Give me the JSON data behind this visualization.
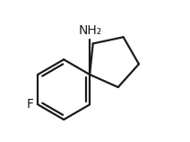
{
  "background_color": "#ffffff",
  "line_color": "#1a1a1a",
  "line_width": 1.6,
  "font_size_nh2": 10,
  "font_size_f": 10,
  "nh2_label": "NH₂",
  "f_label": "F",
  "figsize": [
    2.12,
    1.58
  ],
  "dpi": 100
}
